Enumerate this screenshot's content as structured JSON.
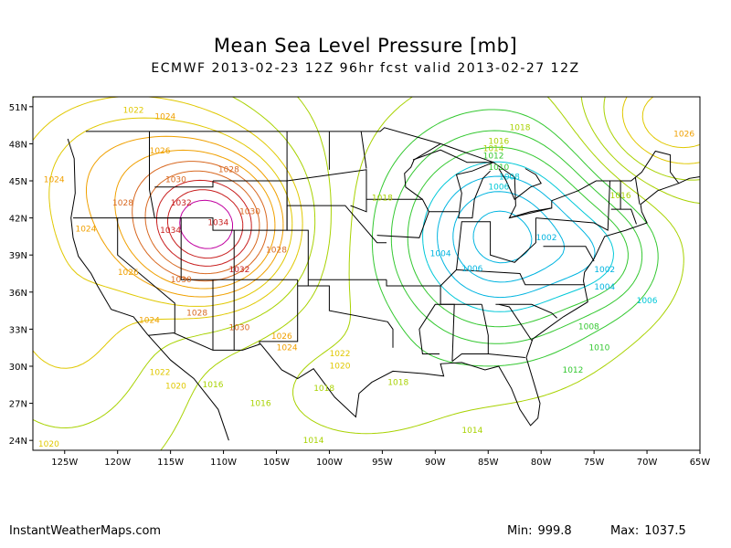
{
  "title": "Mean Sea Level Pressure [mb]",
  "subtitle": "ECMWF 2013-02-23 12Z 96hr fcst valid 2013-02-27 12Z",
  "footer": {
    "site": "InstantWeatherMaps.com",
    "min_label": "Min:",
    "min_value": "999.8",
    "max_label": "Max:",
    "max_value": "1037.5"
  },
  "axes": {
    "lat_labels": [
      "51N",
      "48N",
      "45N",
      "42N",
      "39N",
      "36N",
      "33N",
      "30N",
      "27N",
      "24N"
    ],
    "lon_labels": [
      "125W",
      "120W",
      "115W",
      "110W",
      "105W",
      "100W",
      "95W",
      "90W",
      "85W",
      "80W",
      "75W",
      "70W",
      "65W"
    ]
  },
  "colors": {
    "c998": "#00b4e0",
    "c1006": "#00c8d8",
    "c1010": "#33c830",
    "c1016": "#a8d200",
    "c1020": "#e0c800",
    "c1024": "#f0a000",
    "c1028": "#d86820",
    "c1032": "#c81e1e",
    "c1036": "#c000a0",
    "border": "#000000"
  },
  "contour_labels": [
    {
      "text": "1022",
      "cls": "c1020",
      "lon": -118.5,
      "lat": 50.5
    },
    {
      "text": "1024",
      "cls": "c1024",
      "lon": -115.5,
      "lat": 50.0
    },
    {
      "text": "1026",
      "cls": "c1024",
      "lon": -116.0,
      "lat": 47.2
    },
    {
      "text": "1028",
      "cls": "c1028",
      "lon": -109.5,
      "lat": 45.7
    },
    {
      "text": "1030",
      "cls": "c1028",
      "lon": -114.5,
      "lat": 44.9
    },
    {
      "text": "1024",
      "cls": "c1024",
      "lon": -126.0,
      "lat": 44.9
    },
    {
      "text": "1028",
      "cls": "c1028",
      "lon": -119.5,
      "lat": 43.0
    },
    {
      "text": "1032",
      "cls": "c1032",
      "lon": -114.0,
      "lat": 43.0
    },
    {
      "text": "1030",
      "cls": "c1028",
      "lon": -107.5,
      "lat": 42.3
    },
    {
      "text": "1034",
      "cls": "c1032",
      "lon": -110.5,
      "lat": 41.4
    },
    {
      "text": "1034",
      "cls": "c1032",
      "lon": -115.0,
      "lat": 40.8
    },
    {
      "text": "1024",
      "cls": "c1024",
      "lon": -123.0,
      "lat": 40.9
    },
    {
      "text": "1028",
      "cls": "c1028",
      "lon": -105.0,
      "lat": 39.2
    },
    {
      "text": "1032",
      "cls": "c1032",
      "lon": -108.5,
      "lat": 37.6
    },
    {
      "text": "1026",
      "cls": "c1024",
      "lon": -119.0,
      "lat": 37.4
    },
    {
      "text": "1030",
      "cls": "c1028",
      "lon": -114.0,
      "lat": 36.8
    },
    {
      "text": "1028",
      "cls": "c1028",
      "lon": -112.5,
      "lat": 34.1
    },
    {
      "text": "1024",
      "cls": "c1024",
      "lon": -117.0,
      "lat": 33.5
    },
    {
      "text": "1030",
      "cls": "c1028",
      "lon": -108.5,
      "lat": 32.9
    },
    {
      "text": "1026",
      "cls": "c1024",
      "lon": -104.5,
      "lat": 32.2
    },
    {
      "text": "1024",
      "cls": "c1024",
      "lon": -104.0,
      "lat": 31.3
    },
    {
      "text": "1022",
      "cls": "c1020",
      "lon": -99.0,
      "lat": 30.8
    },
    {
      "text": "1020",
      "cls": "c1020",
      "lon": -99.0,
      "lat": 29.8
    },
    {
      "text": "1022",
      "cls": "c1020",
      "lon": -116.0,
      "lat": 29.3
    },
    {
      "text": "1020",
      "cls": "c1020",
      "lon": -114.5,
      "lat": 28.2
    },
    {
      "text": "1016",
      "cls": "c1016",
      "lon": -111.0,
      "lat": 28.3
    },
    {
      "text": "1018",
      "cls": "c1016",
      "lon": -100.5,
      "lat": 28.0
    },
    {
      "text": "1016",
      "cls": "c1016",
      "lon": -106.5,
      "lat": 26.8
    },
    {
      "text": "1018",
      "cls": "c1016",
      "lon": -93.5,
      "lat": 28.5
    },
    {
      "text": "1014",
      "cls": "c1016",
      "lon": -86.5,
      "lat": 24.6
    },
    {
      "text": "1014",
      "cls": "c1016",
      "lon": -101.5,
      "lat": 23.8
    },
    {
      "text": "1020",
      "cls": "c1020",
      "lon": -126.5,
      "lat": 23.5
    },
    {
      "text": "1018",
      "cls": "c1016",
      "lon": -95.0,
      "lat": 43.4
    },
    {
      "text": "1018",
      "cls": "c1016",
      "lon": -82.0,
      "lat": 49.1
    },
    {
      "text": "1016",
      "cls": "c1016",
      "lon": -84.0,
      "lat": 48.0
    },
    {
      "text": "1014",
      "cls": "c1016",
      "lon": -84.5,
      "lat": 47.4
    },
    {
      "text": "1012",
      "cls": "c1010",
      "lon": -84.5,
      "lat": 46.8
    },
    {
      "text": "1010",
      "cls": "c1010",
      "lon": -84.0,
      "lat": 45.9
    },
    {
      "text": "1008",
      "cls": "c1006",
      "lon": -83.0,
      "lat": 45.1
    },
    {
      "text": "1006",
      "cls": "c1006",
      "lon": -84.0,
      "lat": 44.3
    },
    {
      "text": "1004",
      "cls": "c998",
      "lon": -89.5,
      "lat": 38.9
    },
    {
      "text": "1006",
      "cls": "c998",
      "lon": -86.5,
      "lat": 37.7
    },
    {
      "text": "1002",
      "cls": "c998",
      "lon": -79.5,
      "lat": 40.2
    },
    {
      "text": "1002",
      "cls": "c998",
      "lon": -74.0,
      "lat": 37.6
    },
    {
      "text": "1004",
      "cls": "c998",
      "lon": -74.0,
      "lat": 36.2
    },
    {
      "text": "1006",
      "cls": "c1006",
      "lon": -70.0,
      "lat": 35.1
    },
    {
      "text": "1008",
      "cls": "c1010",
      "lon": -75.5,
      "lat": 33.0
    },
    {
      "text": "1010",
      "cls": "c1010",
      "lon": -74.5,
      "lat": 31.3
    },
    {
      "text": "1012",
      "cls": "c1010",
      "lon": -77.0,
      "lat": 29.5
    },
    {
      "text": "1016",
      "cls": "c1016",
      "lon": -72.5,
      "lat": 43.6
    },
    {
      "text": "1026",
      "cls": "c1024",
      "lon": -66.5,
      "lat": 48.6
    }
  ]
}
